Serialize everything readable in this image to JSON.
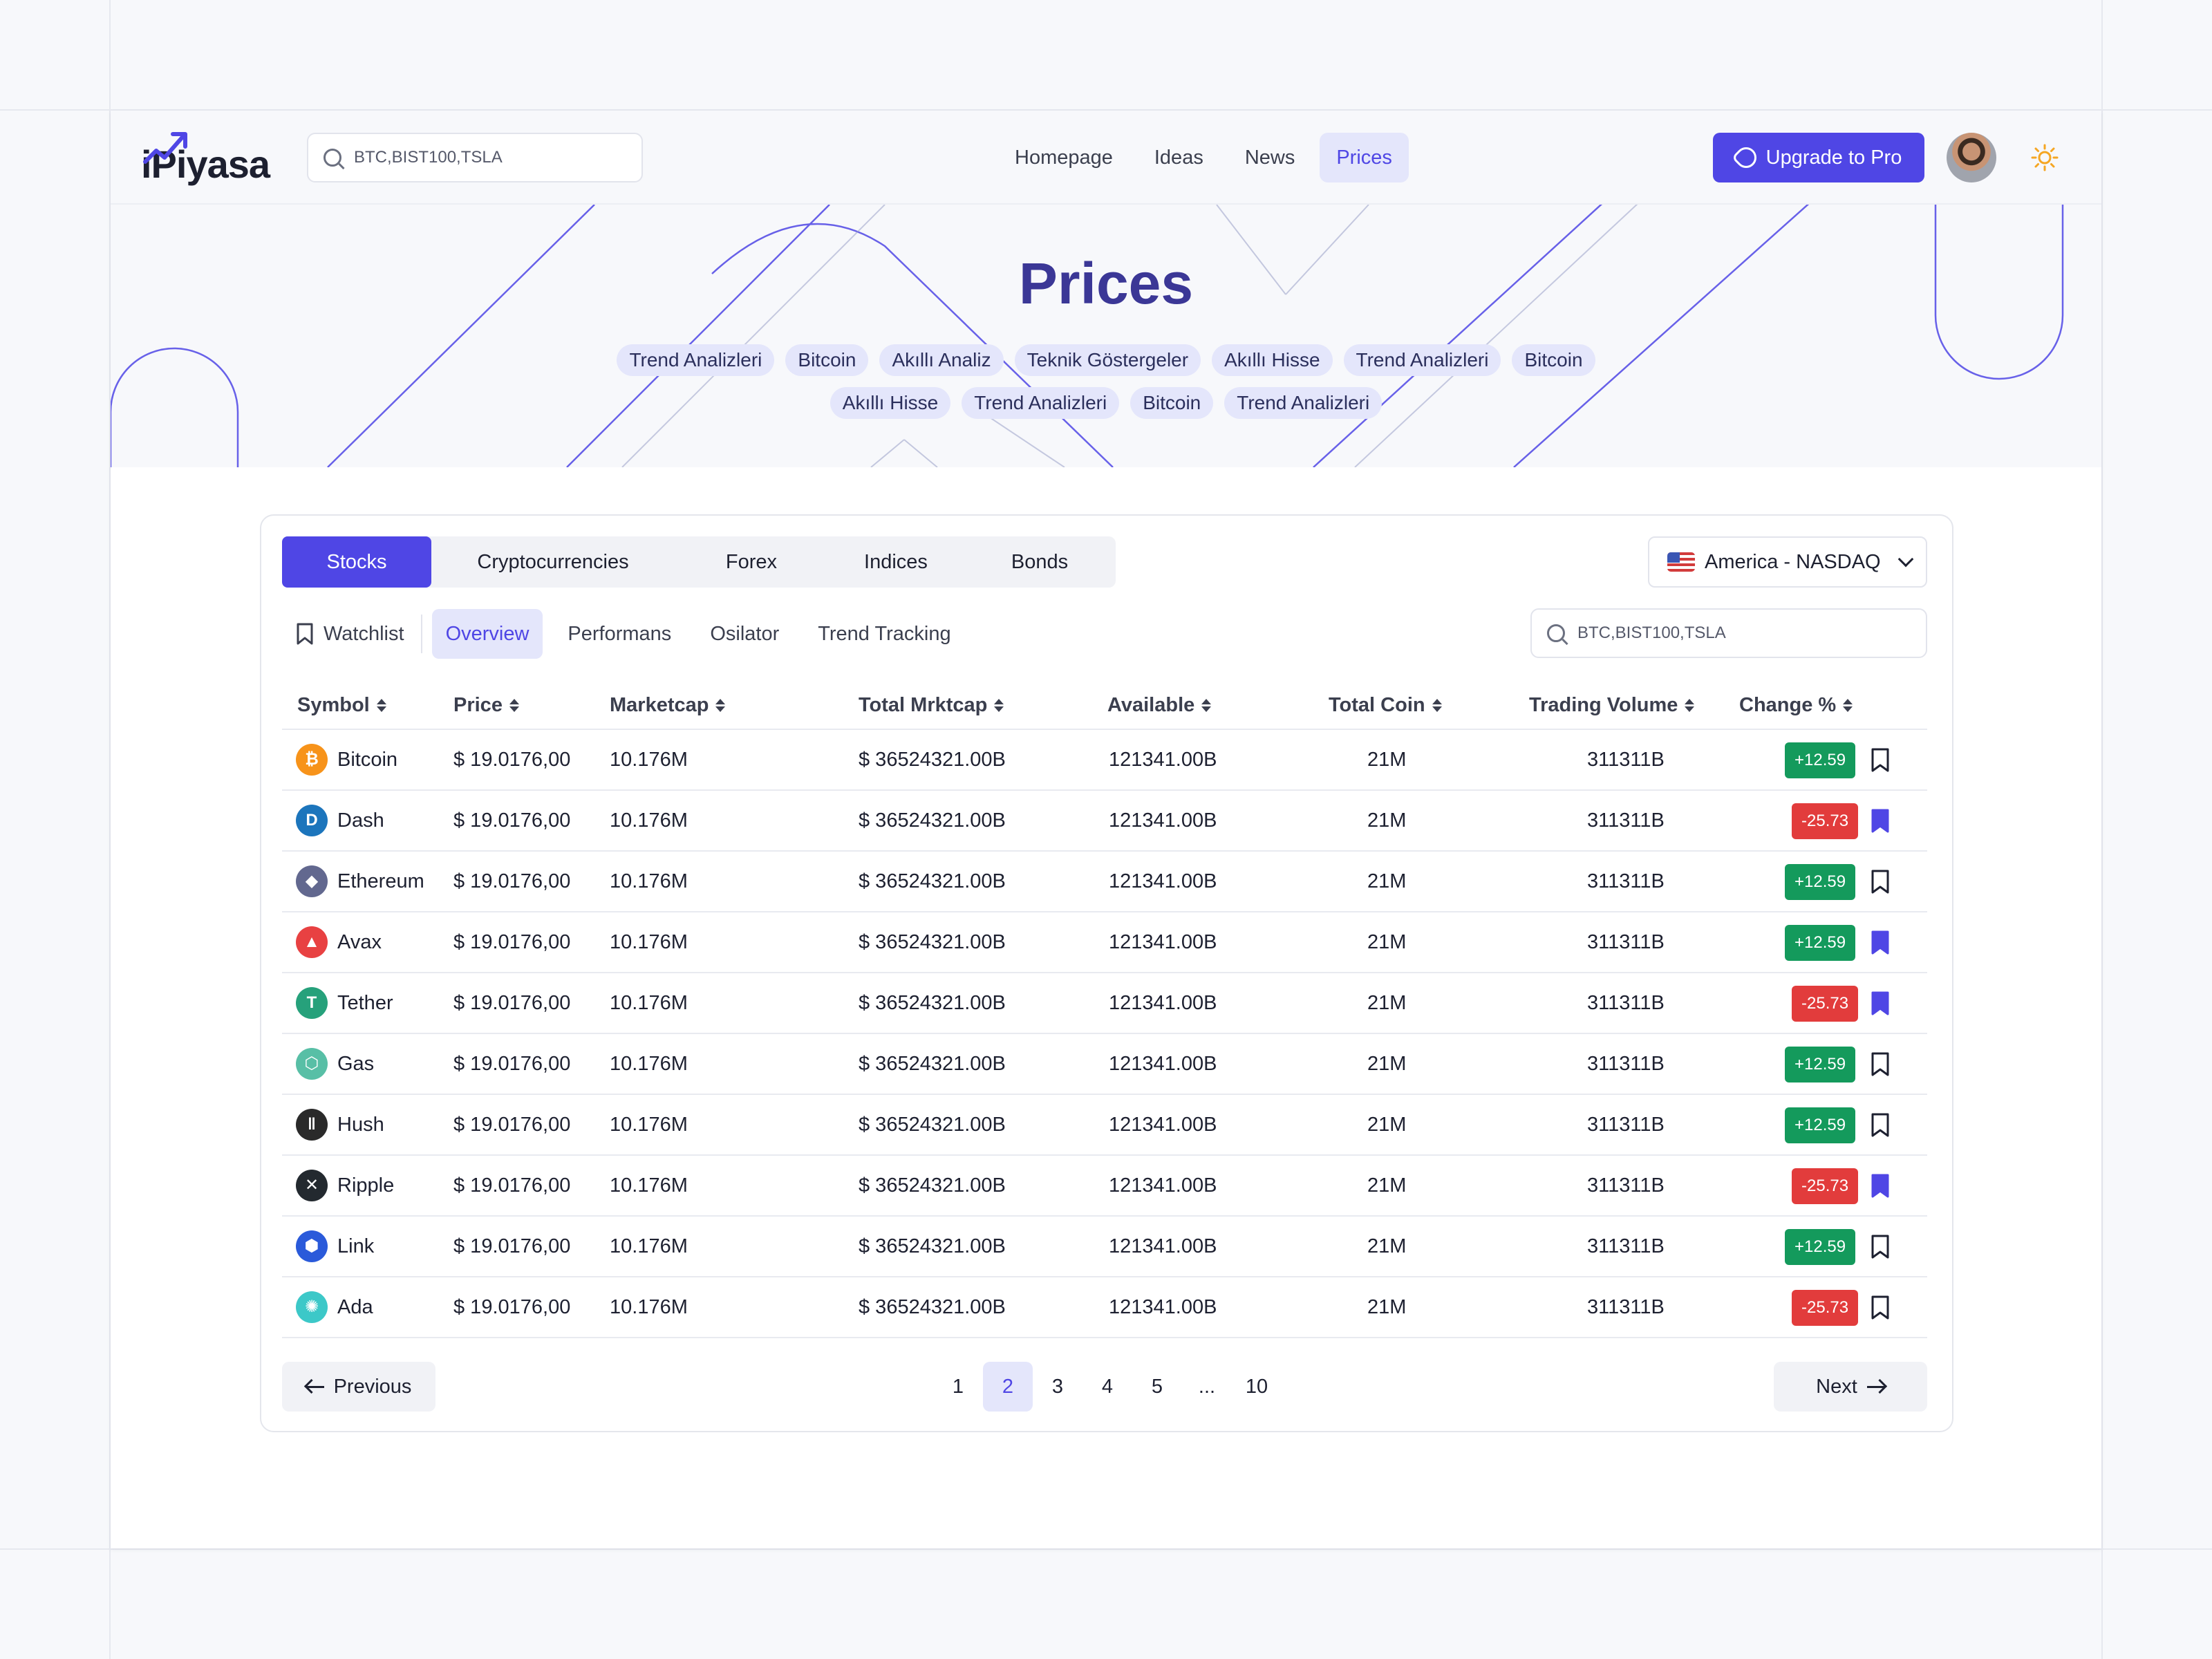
{
  "header": {
    "logo_text": "iPiyasa",
    "search_placeholder": "BTC,BIST100,TSLA",
    "nav": [
      "Homepage",
      "Ideas",
      "News",
      "Prices"
    ],
    "nav_active": "Prices",
    "upgrade_label": "Upgrade to Pro"
  },
  "hero": {
    "title": "Prices",
    "tags": [
      "Trend Analizleri",
      "Bitcoin",
      "Akıllı Analiz",
      "Teknik Göstergeler",
      "Akıllı Hisse",
      "Trend Analizleri",
      "Bitcoin",
      "Akıllı Hisse",
      "Trend Analizleri",
      "Bitcoin",
      "Trend Analizleri"
    ]
  },
  "tabs": [
    "Stocks",
    "Cryptocurrencies",
    "Forex",
    "Indices",
    "Bonds"
  ],
  "tabs_active": "Stocks",
  "market_select": "America - NASDAQ",
  "subtabs": {
    "watchlist": "Watchlist",
    "items": [
      "Overview",
      "Performans",
      "Osilator",
      "Trend Tracking"
    ],
    "active": "Overview"
  },
  "table_search_placeholder": "BTC,BIST100,TSLA",
  "table": {
    "columns": [
      "Symbol",
      "Price",
      "Marketcap",
      "Total Mrktcap",
      "Available",
      "Total Coin",
      "Trading Volume",
      "Change %"
    ],
    "rows": [
      {
        "symbol": "Bitcoin",
        "price": "$ 19.0176,00",
        "marketcap": "10.176M",
        "total": "$ 36524321.00B",
        "available": "121341.00B",
        "coin": "21M",
        "volume": "311311B",
        "change": "+12.59",
        "positive": true,
        "saved": false,
        "icon": "bitcoin-icon",
        "color": "#f7931a",
        "glyph": "₿"
      },
      {
        "symbol": "Dash",
        "price": "$ 19.0176,00",
        "marketcap": "10.176M",
        "total": "$ 36524321.00B",
        "available": "121341.00B",
        "coin": "21M",
        "volume": "311311B",
        "change": "-25.73",
        "positive": false,
        "saved": true,
        "icon": "dash-icon",
        "color": "#1c75bc",
        "glyph": "D"
      },
      {
        "symbol": "Ethereum",
        "price": "$ 19.0176,00",
        "marketcap": "10.176M",
        "total": "$ 36524321.00B",
        "available": "121341.00B",
        "coin": "21M",
        "volume": "311311B",
        "change": "+12.59",
        "positive": true,
        "saved": false,
        "icon": "ethereum-icon",
        "color": "#62688f",
        "glyph": "◆"
      },
      {
        "symbol": "Avax",
        "price": "$ 19.0176,00",
        "marketcap": "10.176M",
        "total": "$ 36524321.00B",
        "available": "121341.00B",
        "coin": "21M",
        "volume": "311311B",
        "change": "+12.59",
        "positive": true,
        "saved": true,
        "icon": "avax-icon",
        "color": "#e84142",
        "glyph": "▲"
      },
      {
        "symbol": "Tether",
        "price": "$ 19.0176,00",
        "marketcap": "10.176M",
        "total": "$ 36524321.00B",
        "available": "121341.00B",
        "coin": "21M",
        "volume": "311311B",
        "change": "-25.73",
        "positive": false,
        "saved": true,
        "icon": "tether-icon",
        "color": "#26a17b",
        "glyph": "T"
      },
      {
        "symbol": "Gas",
        "price": "$ 19.0176,00",
        "marketcap": "10.176M",
        "total": "$ 36524321.00B",
        "available": "121341.00B",
        "coin": "21M",
        "volume": "311311B",
        "change": "+12.59",
        "positive": true,
        "saved": false,
        "icon": "gas-icon",
        "color": "#58bfa6",
        "glyph": "⬡"
      },
      {
        "symbol": "Hush",
        "price": "$ 19.0176,00",
        "marketcap": "10.176M",
        "total": "$ 36524321.00B",
        "available": "121341.00B",
        "coin": "21M",
        "volume": "311311B",
        "change": "+12.59",
        "positive": true,
        "saved": false,
        "icon": "hush-icon",
        "color": "#2a2a2a",
        "glyph": "‖"
      },
      {
        "symbol": "Ripple",
        "price": "$ 19.0176,00",
        "marketcap": "10.176M",
        "total": "$ 36524321.00B",
        "available": "121341.00B",
        "coin": "21M",
        "volume": "311311B",
        "change": "-25.73",
        "positive": false,
        "saved": true,
        "icon": "ripple-icon",
        "color": "#23292f",
        "glyph": "✕"
      },
      {
        "symbol": "Link",
        "price": "$ 19.0176,00",
        "marketcap": "10.176M",
        "total": "$ 36524321.00B",
        "available": "121341.00B",
        "coin": "21M",
        "volume": "311311B",
        "change": "+12.59",
        "positive": true,
        "saved": false,
        "icon": "chainlink-icon",
        "color": "#2a5ada",
        "glyph": "⬢"
      },
      {
        "symbol": "Ada",
        "price": "$ 19.0176,00",
        "marketcap": "10.176M",
        "total": "$ 36524321.00B",
        "available": "121341.00B",
        "coin": "21M",
        "volume": "311311B",
        "change": "-25.73",
        "positive": false,
        "saved": false,
        "icon": "cardano-icon",
        "color": "#3cc8c8",
        "glyph": "✺"
      }
    ]
  },
  "pagination": {
    "previous": "Previous",
    "next": "Next",
    "pages": [
      "1",
      "2",
      "3",
      "4",
      "5",
      "...",
      "10"
    ],
    "active": "2"
  },
  "colors": {
    "accent": "#4f46e5",
    "accent_soft": "#e4e6fb",
    "positive": "#149a5c",
    "negative": "#e23c3c"
  }
}
